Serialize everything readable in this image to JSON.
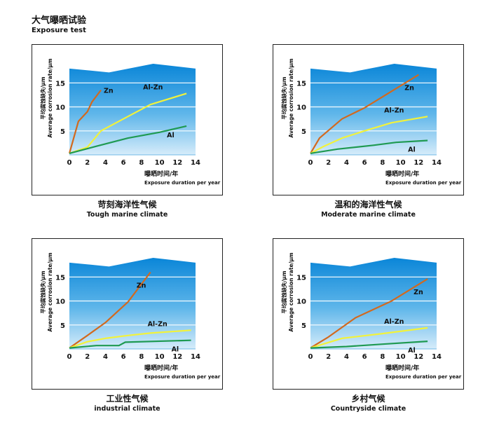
{
  "header": {
    "title_zh": "大气曝晒试验",
    "title_en": "Exposure test"
  },
  "chart_data": [
    {
      "type": "line",
      "caption_zh": "苛刻海洋性气候",
      "caption_en": "Tough marine climate",
      "ylabel_zh": "平均腐蚀缺失/μm",
      "ylabel_en": "Average corrosion rate/μm",
      "xlabel_zh": "曝晒时间/年",
      "xlabel_en": "Exposure duration per year",
      "xlim": [
        0,
        14
      ],
      "ylim": [
        0,
        19
      ],
      "xticks": [
        "0",
        "2",
        "4",
        "6",
        "8",
        "10",
        "12",
        "14"
      ],
      "yticks": [
        "5",
        "10",
        "15"
      ],
      "series": [
        {
          "name": "Zn",
          "color": "#d2691e",
          "points": [
            [
              0,
              0.3
            ],
            [
              1,
              7
            ],
            [
              2,
              9
            ],
            [
              2.5,
              11
            ],
            [
              3.5,
              13.5
            ]
          ]
        },
        {
          "name": "Al-Zn",
          "color": "#f2f23a",
          "points": [
            [
              0,
              0.3
            ],
            [
              2,
              1.6
            ],
            [
              3.5,
              5
            ],
            [
              6,
              7.5
            ],
            [
              9,
              10.5
            ],
            [
              13,
              12.8
            ]
          ]
        },
        {
          "name": "Al",
          "color": "#1f9a52",
          "points": [
            [
              0,
              0.3
            ],
            [
              3,
              1.8
            ],
            [
              6.5,
              3.5
            ],
            [
              10,
              4.7
            ],
            [
              13,
              6
            ]
          ]
        }
      ]
    },
    {
      "type": "line",
      "caption_zh": "温和的海洋性气候",
      "caption_en": "Moderate marine climate",
      "ylabel_zh": "平均腐蚀缺失/μm",
      "ylabel_en": "Average corrosion rate/μm",
      "xlabel_zh": "曝晒时间/年",
      "xlabel_en": "Exposure duration per year",
      "xlim": [
        0,
        14
      ],
      "ylim": [
        0,
        19
      ],
      "xticks": [
        "0",
        "2",
        "4",
        "6",
        "8",
        "10",
        "12",
        "14"
      ],
      "yticks": [
        "5",
        "10",
        "15"
      ],
      "series": [
        {
          "name": "Zn",
          "color": "#d2691e",
          "points": [
            [
              0,
              0.3
            ],
            [
              1,
              3.5
            ],
            [
              3.5,
              7.5
            ],
            [
              6,
              9.8
            ],
            [
              12,
              16.7
            ]
          ]
        },
        {
          "name": "Al-Zn",
          "color": "#f2f23a",
          "points": [
            [
              0,
              0.3
            ],
            [
              1.5,
              1.8
            ],
            [
              3.5,
              3.5
            ],
            [
              6,
              5
            ],
            [
              9,
              6.7
            ],
            [
              13,
              8
            ]
          ]
        },
        {
          "name": "Al",
          "color": "#1f9a52",
          "points": [
            [
              0,
              0.3
            ],
            [
              3,
              1.2
            ],
            [
              7,
              2
            ],
            [
              9.5,
              2.6
            ],
            [
              13,
              3
            ]
          ]
        }
      ]
    },
    {
      "type": "line",
      "caption_zh": "工业性气候",
      "caption_en": "industrial climate",
      "ylabel_zh": "平均腐蚀缺失/μm",
      "ylabel_en": "Average corrosion rate/μm",
      "xlabel_zh": "曝晒时间/年",
      "xlabel_en": "Exposure duration per year",
      "xlim": [
        0,
        14
      ],
      "ylim": [
        0,
        19
      ],
      "xticks": [
        "0",
        "2",
        "4",
        "6",
        "8",
        "10",
        "12",
        "14"
      ],
      "yticks": [
        "5",
        "10",
        "15"
      ],
      "series": [
        {
          "name": "Zn",
          "color": "#d2691e",
          "points": [
            [
              0,
              0.2
            ],
            [
              2,
              2.8
            ],
            [
              4,
              5.5
            ],
            [
              6.5,
              9.8
            ],
            [
              9,
              16
            ]
          ]
        },
        {
          "name": "Al-Zn",
          "color": "#f2f23a",
          "points": [
            [
              0,
              0.2
            ],
            [
              2,
              1.5
            ],
            [
              4,
              2.2
            ],
            [
              6.5,
              2.8
            ],
            [
              9,
              3.3
            ],
            [
              13.5,
              3.9
            ]
          ]
        },
        {
          "name": "Al",
          "color": "#1f9a52",
          "points": [
            [
              0,
              0.2
            ],
            [
              3,
              0.7
            ],
            [
              5.5,
              0.7
            ],
            [
              6.2,
              1.4
            ],
            [
              13.5,
              1.8
            ]
          ]
        }
      ]
    },
    {
      "type": "line",
      "caption_zh": "乡村气候",
      "caption_en": "Countryside climate",
      "ylabel_zh": "平均腐蚀缺失/μm",
      "ylabel_en": "Average corrosion rate/μm",
      "xlabel_zh": "曝晒时间/年",
      "xlabel_en": "Exposure duration per year",
      "xlim": [
        0,
        14
      ],
      "ylim": [
        0,
        19
      ],
      "xticks": [
        "0",
        "2",
        "4",
        "6",
        "8",
        "10",
        "12",
        "14"
      ],
      "yticks": [
        "5",
        "10",
        "15"
      ],
      "series": [
        {
          "name": "Zn",
          "color": "#d2691e",
          "points": [
            [
              0,
              0.2
            ],
            [
              2,
              2.5
            ],
            [
              5,
              6.5
            ],
            [
              9,
              10
            ],
            [
              13,
              14.6
            ]
          ]
        },
        {
          "name": "Al-Zn",
          "color": "#f2f23a",
          "points": [
            [
              0,
              0.2
            ],
            [
              3.5,
              2.2
            ],
            [
              8,
              3.2
            ],
            [
              13,
              4.4
            ]
          ]
        },
        {
          "name": "Al",
          "color": "#1f9a52",
          "points": [
            [
              0,
              0.2
            ],
            [
              4,
              0.5
            ],
            [
              8,
              1
            ],
            [
              13,
              1.6
            ]
          ]
        }
      ]
    }
  ]
}
